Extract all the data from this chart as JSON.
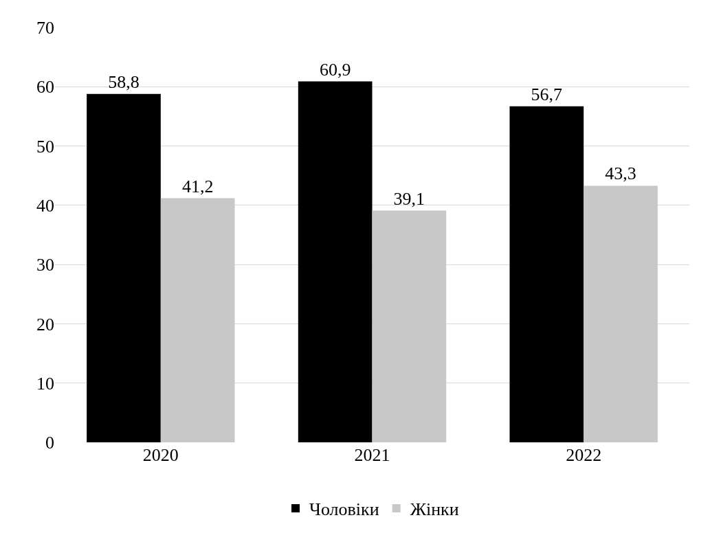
{
  "chart_data": {
    "type": "bar",
    "categories": [
      "2020",
      "2021",
      "2022"
    ],
    "series": [
      {
        "name": "Чоловіки",
        "color": "#000000",
        "values": [
          58.8,
          60.9,
          56.7
        ],
        "value_labels": [
          "58,8",
          "60,9",
          "56,7"
        ]
      },
      {
        "name": "Жінки",
        "color": "#c8c8c8",
        "values": [
          41.2,
          39.1,
          43.3
        ],
        "value_labels": [
          "41,2",
          "39,1",
          "43,3"
        ]
      }
    ],
    "ylim": [
      0,
      70
    ],
    "yticks": [
      0,
      10,
      20,
      30,
      40,
      50,
      60,
      70
    ],
    "grid": "y",
    "legend": "bottom"
  }
}
